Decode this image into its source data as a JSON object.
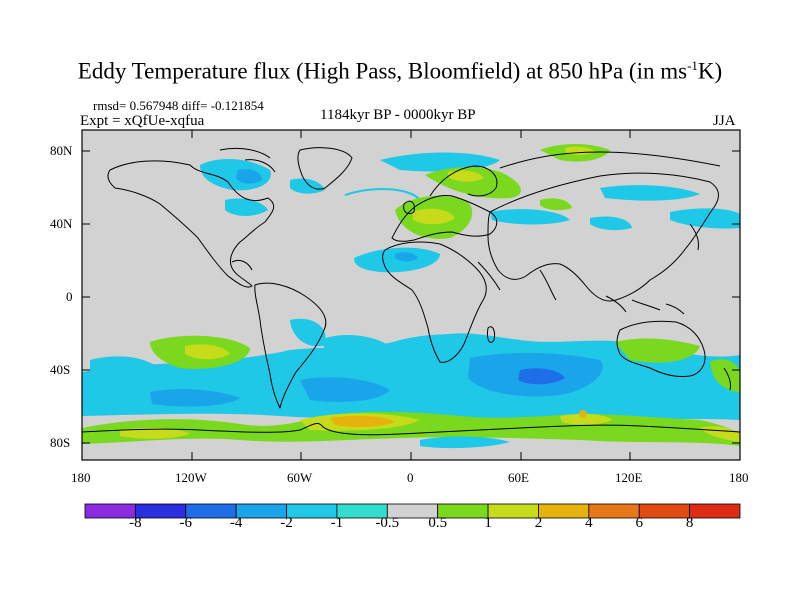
{
  "title": {
    "main": "Eddy Temperature flux (High Pass, Bloomfield) at 850 hPa (in ms",
    "superscript": "-1",
    "unit_tail": "K)"
  },
  "stats": "rmsd= 0.567948 diff= -0.121854",
  "experiment": "Expt = xQfUe-xqfua",
  "period": "1184kyr BP - 0000kyr BP",
  "season": "JJA",
  "axes": {
    "y_labels": [
      "80N",
      "40N",
      "0",
      "40S",
      "80S"
    ],
    "x_labels": [
      "180",
      "120W",
      "60W",
      "0",
      "60E",
      "120E",
      "180"
    ]
  },
  "colorbar": {
    "labels": [
      "-8",
      "-6",
      "-4",
      "-2",
      "-1",
      "-0.5",
      "0.5",
      "1",
      "2",
      "4",
      "6",
      "8"
    ],
    "colors": [
      "#8a2be2",
      "#2a2fe0",
      "#1e6ee8",
      "#1aa4ea",
      "#1ec8e6",
      "#34dcd0",
      "#d2d2d2",
      "#7ad81e",
      "#c6dc1a",
      "#e6b20e",
      "#e6781a",
      "#e24a14",
      "#dc2c14"
    ]
  }
}
